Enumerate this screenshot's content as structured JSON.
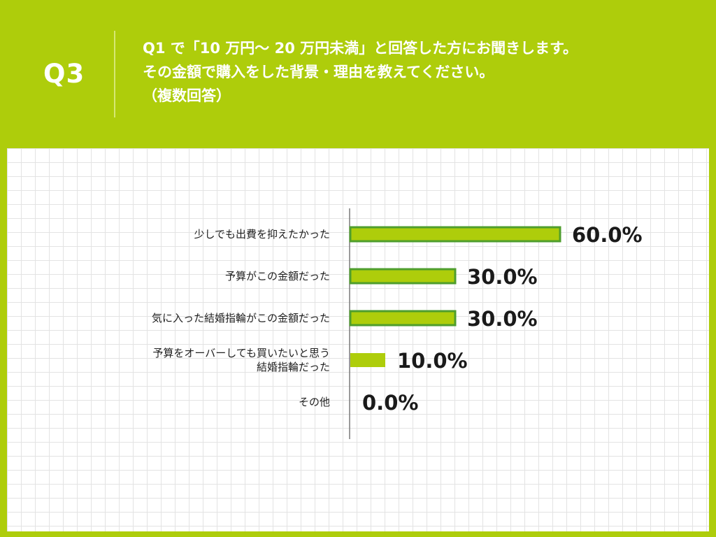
{
  "header": {
    "question_number": "Q3",
    "question_lines": [
      "Q1 で「10 万円〜 20 万円未満」と回答した方にお聞きします。",
      "その金額で購入をした背景・理由を教えてください。",
      "（複数回答）"
    ]
  },
  "colors": {
    "background": "#aecd0b",
    "bar_fill": "#aecd0b",
    "bar_highlight_stroke": "#4f9e2d"
  },
  "chart_data": {
    "type": "bar",
    "orientation": "horizontal",
    "title": "",
    "xlabel": "",
    "ylabel": "",
    "categories": [
      [
        "少しでも出費を抑えたかった"
      ],
      [
        "予算がこの金額だった"
      ],
      [
        "気に入った結婚指輪がこの金額だった"
      ],
      [
        "予算をオーバーしても買いたいと思う",
        "結婚指輪だった"
      ],
      [
        "その他"
      ]
    ],
    "values": [
      60.0,
      30.0,
      30.0,
      10.0,
      0.0
    ],
    "value_labels": [
      "60.0%",
      "30.0%",
      "30.0%",
      "10.0%",
      "0.0%"
    ],
    "unit": "%",
    "xlim": [
      0,
      100
    ],
    "grid": false,
    "legend": "none"
  }
}
